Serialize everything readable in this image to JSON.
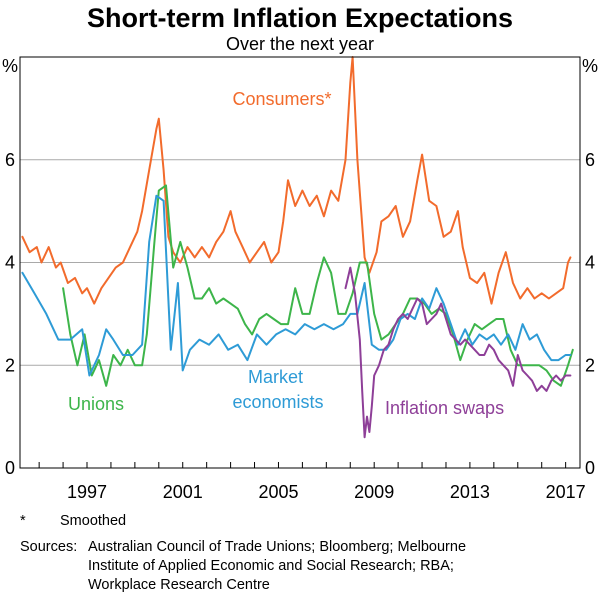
{
  "chart_data": {
    "type": "line",
    "title": "Short-term Inflation Expectations",
    "subtitle": "Over the next year",
    "ylabel_left": "%",
    "ylabel_right": "%",
    "xlim": [
      1994.2,
      2017.6
    ],
    "ylim": [
      0,
      8
    ],
    "y_ticks": [
      0,
      2,
      4,
      6
    ],
    "x_ticks": [
      1997,
      2001,
      2005,
      2009,
      2013,
      2017
    ],
    "x_tick_labels": [
      "1997",
      "2001",
      "2005",
      "2009",
      "2013",
      "2017"
    ],
    "grid": true,
    "series": [
      {
        "name": "Consumers*",
        "label_text": "Consumers*",
        "key": "consumers",
        "color": "#F26B2C",
        "points": [
          [
            1994.3,
            4.5
          ],
          [
            1994.6,
            4.2
          ],
          [
            1994.9,
            4.3
          ],
          [
            1995.1,
            4.0
          ],
          [
            1995.4,
            4.3
          ],
          [
            1995.7,
            3.9
          ],
          [
            1995.9,
            4.0
          ],
          [
            1996.2,
            3.6
          ],
          [
            1996.5,
            3.7
          ],
          [
            1996.8,
            3.4
          ],
          [
            1997.0,
            3.5
          ],
          [
            1997.3,
            3.2
          ],
          [
            1997.6,
            3.5
          ],
          [
            1997.9,
            3.7
          ],
          [
            1998.2,
            3.9
          ],
          [
            1998.5,
            4.0
          ],
          [
            1998.8,
            4.3
          ],
          [
            1999.1,
            4.6
          ],
          [
            1999.3,
            5.0
          ],
          [
            1999.6,
            5.8
          ],
          [
            1999.9,
            6.6
          ],
          [
            2000.0,
            6.8
          ],
          [
            2000.2,
            5.8
          ],
          [
            2000.4,
            4.5
          ],
          [
            2000.6,
            4.2
          ],
          [
            2000.9,
            4.0
          ],
          [
            2001.2,
            4.3
          ],
          [
            2001.5,
            4.1
          ],
          [
            2001.8,
            4.3
          ],
          [
            2002.1,
            4.1
          ],
          [
            2002.4,
            4.4
          ],
          [
            2002.7,
            4.6
          ],
          [
            2003.0,
            5.0
          ],
          [
            2003.2,
            4.6
          ],
          [
            2003.5,
            4.3
          ],
          [
            2003.8,
            4.0
          ],
          [
            2004.1,
            4.2
          ],
          [
            2004.4,
            4.4
          ],
          [
            2004.7,
            4.0
          ],
          [
            2005.0,
            4.2
          ],
          [
            2005.2,
            4.8
          ],
          [
            2005.4,
            5.6
          ],
          [
            2005.7,
            5.1
          ],
          [
            2006.0,
            5.4
          ],
          [
            2006.3,
            5.1
          ],
          [
            2006.6,
            5.3
          ],
          [
            2006.9,
            4.9
          ],
          [
            2007.2,
            5.4
          ],
          [
            2007.5,
            5.2
          ],
          [
            2007.8,
            6.0
          ],
          [
            2008.0,
            7.5
          ],
          [
            2008.1,
            8.0
          ],
          [
            2008.3,
            6.0
          ],
          [
            2008.6,
            4.1
          ],
          [
            2008.8,
            3.8
          ],
          [
            2009.1,
            4.2
          ],
          [
            2009.3,
            4.8
          ],
          [
            2009.6,
            4.9
          ],
          [
            2009.9,
            5.1
          ],
          [
            2010.2,
            4.5
          ],
          [
            2010.5,
            4.8
          ],
          [
            2010.8,
            5.6
          ],
          [
            2011.0,
            6.1
          ],
          [
            2011.3,
            5.2
          ],
          [
            2011.6,
            5.1
          ],
          [
            2011.9,
            4.5
          ],
          [
            2012.2,
            4.6
          ],
          [
            2012.5,
            5.0
          ],
          [
            2012.7,
            4.3
          ],
          [
            2013.0,
            3.7
          ],
          [
            2013.3,
            3.6
          ],
          [
            2013.6,
            3.8
          ],
          [
            2013.9,
            3.2
          ],
          [
            2014.2,
            3.8
          ],
          [
            2014.5,
            4.2
          ],
          [
            2014.8,
            3.6
          ],
          [
            2015.1,
            3.3
          ],
          [
            2015.4,
            3.5
          ],
          [
            2015.7,
            3.3
          ],
          [
            2016.0,
            3.4
          ],
          [
            2016.3,
            3.3
          ],
          [
            2016.6,
            3.4
          ],
          [
            2016.9,
            3.5
          ],
          [
            2017.1,
            4.0
          ],
          [
            2017.2,
            4.1
          ]
        ]
      },
      {
        "name": "Unions",
        "label_text": "Unions",
        "key": "unions",
        "color": "#3DB54A",
        "points": [
          [
            1996.0,
            3.5
          ],
          [
            1996.3,
            2.6
          ],
          [
            1996.6,
            2.0
          ],
          [
            1996.9,
            2.6
          ],
          [
            1997.2,
            1.8
          ],
          [
            1997.5,
            2.1
          ],
          [
            1997.8,
            1.6
          ],
          [
            1998.1,
            2.2
          ],
          [
            1998.4,
            2.0
          ],
          [
            1998.7,
            2.3
          ],
          [
            1999.0,
            2.0
          ],
          [
            1999.3,
            2.0
          ],
          [
            1999.5,
            2.6
          ],
          [
            1999.8,
            4.3
          ],
          [
            2000.0,
            5.4
          ],
          [
            2000.3,
            5.5
          ],
          [
            2000.6,
            3.9
          ],
          [
            2000.9,
            4.4
          ],
          [
            2001.2,
            3.9
          ],
          [
            2001.5,
            3.3
          ],
          [
            2001.8,
            3.3
          ],
          [
            2002.1,
            3.5
          ],
          [
            2002.4,
            3.2
          ],
          [
            2002.7,
            3.3
          ],
          [
            2003.0,
            3.2
          ],
          [
            2003.3,
            3.1
          ],
          [
            2003.6,
            2.8
          ],
          [
            2003.9,
            2.6
          ],
          [
            2004.2,
            2.9
          ],
          [
            2004.5,
            3.0
          ],
          [
            2004.8,
            2.9
          ],
          [
            2005.1,
            2.8
          ],
          [
            2005.4,
            2.8
          ],
          [
            2005.7,
            3.5
          ],
          [
            2006.0,
            3.0
          ],
          [
            2006.3,
            3.0
          ],
          [
            2006.6,
            3.6
          ],
          [
            2006.9,
            4.1
          ],
          [
            2007.2,
            3.8
          ],
          [
            2007.5,
            3.0
          ],
          [
            2007.8,
            3.0
          ],
          [
            2008.1,
            3.4
          ],
          [
            2008.4,
            4.0
          ],
          [
            2008.7,
            4.0
          ],
          [
            2009.0,
            3.0
          ],
          [
            2009.3,
            2.5
          ],
          [
            2009.6,
            2.6
          ],
          [
            2009.9,
            2.8
          ],
          [
            2010.2,
            3.0
          ],
          [
            2010.5,
            3.3
          ],
          [
            2010.8,
            3.3
          ],
          [
            2011.1,
            3.2
          ],
          [
            2011.4,
            3.0
          ],
          [
            2011.7,
            3.1
          ],
          [
            2012.0,
            3.0
          ],
          [
            2012.3,
            2.6
          ],
          [
            2012.6,
            2.1
          ],
          [
            2012.9,
            2.5
          ],
          [
            2013.2,
            2.8
          ],
          [
            2013.5,
            2.7
          ],
          [
            2013.8,
            2.8
          ],
          [
            2014.1,
            2.9
          ],
          [
            2014.4,
            2.9
          ],
          [
            2014.7,
            2.3
          ],
          [
            2015.0,
            2.0
          ],
          [
            2015.3,
            2.0
          ],
          [
            2015.6,
            2.0
          ],
          [
            2015.9,
            2.0
          ],
          [
            2016.2,
            1.9
          ],
          [
            2016.5,
            1.7
          ],
          [
            2016.8,
            1.6
          ],
          [
            2017.1,
            2.0
          ],
          [
            2017.3,
            2.3
          ]
        ]
      },
      {
        "name": "Market economists",
        "label_text": "Market economists",
        "key": "market",
        "color": "#2E9BD6",
        "points": [
          [
            1994.3,
            3.8
          ],
          [
            1994.8,
            3.4
          ],
          [
            1995.3,
            3.0
          ],
          [
            1995.8,
            2.5
          ],
          [
            1996.3,
            2.5
          ],
          [
            1996.8,
            2.7
          ],
          [
            1997.1,
            1.8
          ],
          [
            1997.5,
            2.2
          ],
          [
            1997.8,
            2.7
          ],
          [
            1998.1,
            2.5
          ],
          [
            1998.5,
            2.2
          ],
          [
            1998.9,
            2.2
          ],
          [
            1999.3,
            2.4
          ],
          [
            1999.6,
            4.4
          ],
          [
            1999.9,
            5.3
          ],
          [
            2000.2,
            5.2
          ],
          [
            2000.5,
            2.3
          ],
          [
            2000.8,
            3.6
          ],
          [
            2001.0,
            1.9
          ],
          [
            2001.3,
            2.3
          ],
          [
            2001.7,
            2.5
          ],
          [
            2002.1,
            2.4
          ],
          [
            2002.5,
            2.6
          ],
          [
            2002.9,
            2.3
          ],
          [
            2003.3,
            2.4
          ],
          [
            2003.7,
            2.1
          ],
          [
            2004.1,
            2.6
          ],
          [
            2004.5,
            2.4
          ],
          [
            2004.9,
            2.6
          ],
          [
            2005.3,
            2.7
          ],
          [
            2005.7,
            2.6
          ],
          [
            2006.1,
            2.8
          ],
          [
            2006.5,
            2.7
          ],
          [
            2006.9,
            2.8
          ],
          [
            2007.3,
            2.7
          ],
          [
            2007.7,
            2.8
          ],
          [
            2008.0,
            3.0
          ],
          [
            2008.3,
            3.0
          ],
          [
            2008.6,
            3.6
          ],
          [
            2008.9,
            2.4
          ],
          [
            2009.2,
            2.3
          ],
          [
            2009.5,
            2.3
          ],
          [
            2009.8,
            2.5
          ],
          [
            2010.1,
            2.9
          ],
          [
            2010.4,
            3.0
          ],
          [
            2010.7,
            2.9
          ],
          [
            2011.0,
            3.3
          ],
          [
            2011.3,
            3.1
          ],
          [
            2011.6,
            3.5
          ],
          [
            2011.9,
            3.2
          ],
          [
            2012.2,
            2.8
          ],
          [
            2012.5,
            2.4
          ],
          [
            2012.8,
            2.7
          ],
          [
            2013.1,
            2.4
          ],
          [
            2013.4,
            2.6
          ],
          [
            2013.7,
            2.5
          ],
          [
            2014.0,
            2.6
          ],
          [
            2014.3,
            2.4
          ],
          [
            2014.6,
            2.6
          ],
          [
            2014.9,
            2.3
          ],
          [
            2015.2,
            2.8
          ],
          [
            2015.5,
            2.5
          ],
          [
            2015.8,
            2.6
          ],
          [
            2016.1,
            2.3
          ],
          [
            2016.4,
            2.1
          ],
          [
            2016.7,
            2.1
          ],
          [
            2017.0,
            2.2
          ],
          [
            2017.2,
            2.2
          ]
        ]
      },
      {
        "name": "Inflation swaps",
        "label_text": "Inflation swaps",
        "key": "swaps",
        "color": "#8E3F98",
        "points": [
          [
            2007.8,
            3.5
          ],
          [
            2008.0,
            3.9
          ],
          [
            2008.2,
            3.4
          ],
          [
            2008.4,
            2.5
          ],
          [
            2008.5,
            1.5
          ],
          [
            2008.6,
            0.6
          ],
          [
            2008.7,
            1.0
          ],
          [
            2008.8,
            0.7
          ],
          [
            2008.9,
            1.2
          ],
          [
            2009.0,
            1.8
          ],
          [
            2009.2,
            2.0
          ],
          [
            2009.4,
            2.3
          ],
          [
            2009.6,
            2.4
          ],
          [
            2009.8,
            2.7
          ],
          [
            2010.0,
            2.9
          ],
          [
            2010.2,
            3.0
          ],
          [
            2010.4,
            2.9
          ],
          [
            2010.6,
            3.1
          ],
          [
            2010.8,
            3.3
          ],
          [
            2011.0,
            3.2
          ],
          [
            2011.2,
            2.8
          ],
          [
            2011.4,
            2.9
          ],
          [
            2011.6,
            3.0
          ],
          [
            2011.8,
            3.2
          ],
          [
            2012.0,
            2.9
          ],
          [
            2012.2,
            2.6
          ],
          [
            2012.4,
            2.5
          ],
          [
            2012.6,
            2.4
          ],
          [
            2012.8,
            2.5
          ],
          [
            2013.0,
            2.4
          ],
          [
            2013.2,
            2.3
          ],
          [
            2013.4,
            2.2
          ],
          [
            2013.6,
            2.2
          ],
          [
            2013.8,
            2.4
          ],
          [
            2014.0,
            2.3
          ],
          [
            2014.2,
            2.1
          ],
          [
            2014.4,
            2.0
          ],
          [
            2014.6,
            1.9
          ],
          [
            2014.8,
            1.6
          ],
          [
            2015.0,
            2.2
          ],
          [
            2015.2,
            1.9
          ],
          [
            2015.4,
            1.8
          ],
          [
            2015.6,
            1.7
          ],
          [
            2015.8,
            1.5
          ],
          [
            2016.0,
            1.6
          ],
          [
            2016.2,
            1.5
          ],
          [
            2016.4,
            1.7
          ],
          [
            2016.6,
            1.8
          ],
          [
            2016.8,
            1.7
          ],
          [
            2017.0,
            1.8
          ],
          [
            2017.2,
            1.8
          ]
        ]
      }
    ],
    "series_label_positions": {
      "consumers": "upper-middle",
      "unions": "lower-left",
      "market": "lower-middle",
      "swaps": "lower-right"
    }
  },
  "notes": {
    "footnote_marker": "*",
    "footnote_text": "Smoothed",
    "sources_label": "Sources:",
    "sources_lines": [
      "Australian Council of Trade Unions; Bloomberg; Melbourne",
      "Institute of Applied Economic and Social Research; RBA;",
      "Workplace Research Centre"
    ]
  }
}
